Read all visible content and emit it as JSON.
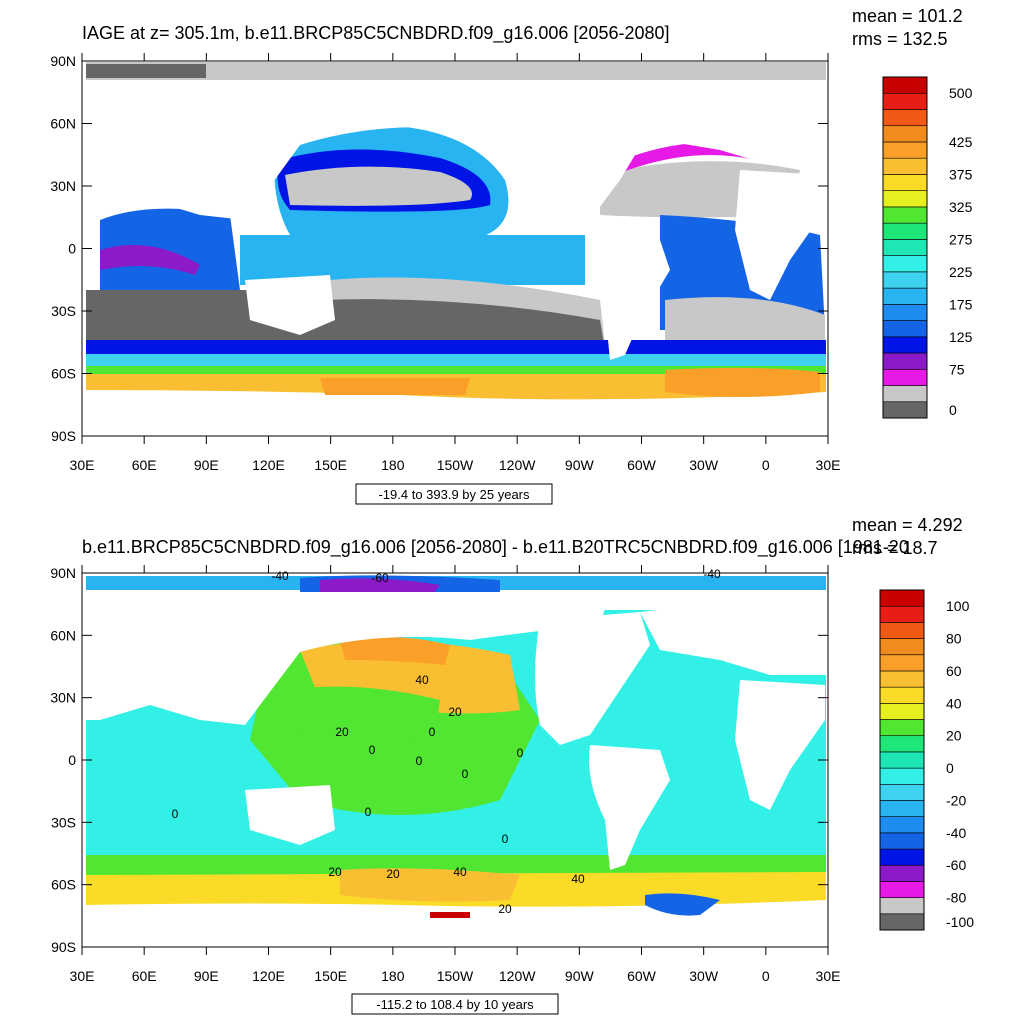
{
  "chart_data": [
    {
      "type": "heatmap",
      "title": "IAGE at z= 305.1m, b.e11.BRCP85C5CNBDRD.f09_g16.006 [2056-2080]",
      "stats": {
        "mean": "mean = 101.2",
        "rms": "rms = 132.5"
      },
      "x_ticks": [
        "30E",
        "60E",
        "90E",
        "120E",
        "150E",
        "180",
        "150W",
        "120W",
        "90W",
        "60W",
        "30W",
        "0",
        "30E"
      ],
      "y_ticks": [
        "90N",
        "60N",
        "30N",
        "0",
        "30S",
        "60S",
        "90S"
      ],
      "xlim": [
        30,
        390
      ],
      "ylim": [
        -90,
        90
      ],
      "range_label": "-19.4 to 393.9 by 25 years",
      "units": "years",
      "colorbar": {
        "colors": [
          "#666666",
          "#c8c8c8",
          "#e619e6",
          "#8c1ac8",
          "#0014e6",
          "#1464e6",
          "#1e8cf0",
          "#28b4f0",
          "#3cd2f0",
          "#32f0e6",
          "#1ee6b4",
          "#1ee678",
          "#50e632",
          "#e6f01e",
          "#fadc28",
          "#fabe32",
          "#faa028",
          "#f08c1e",
          "#f05a14",
          "#e61e14",
          "#c80000"
        ],
        "labels": [
          "0",
          "75",
          "125",
          "175",
          "225",
          "275",
          "325",
          "375",
          "425",
          "500"
        ],
        "label_positions": [
          0,
          3,
          5,
          7,
          9,
          11,
          13,
          15,
          17,
          20
        ]
      }
    },
    {
      "type": "heatmap",
      "title": "b.e11.BRCP85C5CNBDRD.f09_g16.006 [2056-2080] - b.e11.B20TRC5CNBDRD.f09_g16.006 [1981-20",
      "stats": {
        "mean": "mean = 4.292",
        "rms": "rms = 18.7"
      },
      "x_ticks": [
        "30E",
        "60E",
        "90E",
        "120E",
        "150E",
        "180",
        "150W",
        "120W",
        "90W",
        "60W",
        "30W",
        "0",
        "30E"
      ],
      "y_ticks": [
        "90N",
        "60N",
        "30N",
        "0",
        "30S",
        "60S",
        "90S"
      ],
      "xlim": [
        30,
        390
      ],
      "ylim": [
        -90,
        90
      ],
      "range_label": "-115.2 to 108.4 by 10 years",
      "units": "years",
      "contour_labels": [
        "-40",
        "-60",
        "-40",
        "40",
        "20",
        "20",
        "0",
        "0",
        "0",
        "0",
        "0",
        "0",
        "0",
        "0",
        "20",
        "20",
        "40",
        "40",
        "20"
      ],
      "colorbar": {
        "colors": [
          "#666666",
          "#c8c8c8",
          "#e619e6",
          "#8c1ac8",
          "#0014e6",
          "#1464e6",
          "#1e8cf0",
          "#28b4f0",
          "#3cd2f0",
          "#32f0e6",
          "#1ee6b4",
          "#1ee678",
          "#50e632",
          "#e6f01e",
          "#fadc28",
          "#fabe32",
          "#faa028",
          "#f08c1e",
          "#f05a14",
          "#e61e14",
          "#c80000"
        ],
        "labels": [
          "-100",
          "-80",
          "-60",
          "-40",
          "-20",
          "0",
          "20",
          "40",
          "60",
          "80",
          "100"
        ],
        "label_positions": [
          0,
          2,
          4,
          6,
          8,
          10,
          12,
          14,
          16,
          18,
          20
        ]
      }
    }
  ]
}
